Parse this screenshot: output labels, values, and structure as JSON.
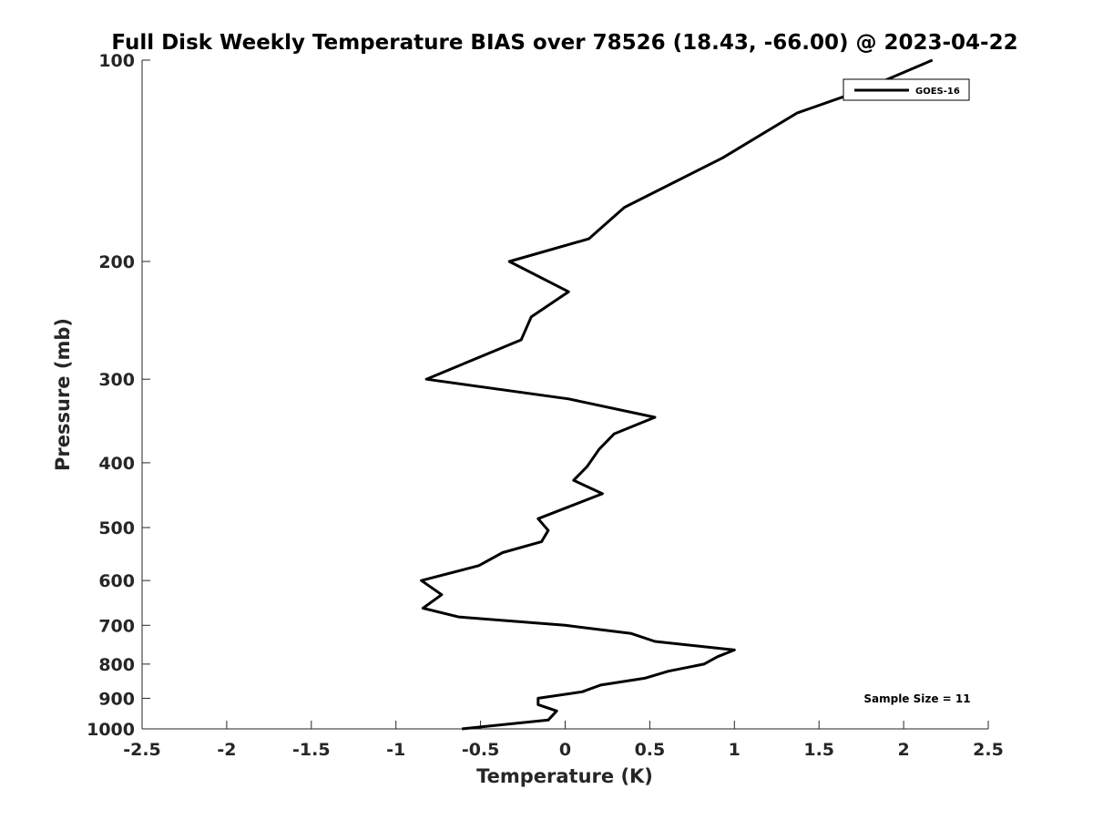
{
  "chart_data": {
    "type": "line",
    "title": "Full Disk Weekly Temperature BIAS over 78526 (18.43, -66.00) @ 2023-04-22",
    "xlabel": "Temperature (K)",
    "ylabel": "Pressure (mb)",
    "xlim": [
      -2.5,
      2.5
    ],
    "ylim": [
      100,
      1000
    ],
    "yscale": "log",
    "y_reversed": true,
    "grid": false,
    "x_ticks": [
      -2.5,
      -2,
      -1.5,
      -1,
      -0.5,
      0,
      0.5,
      1,
      1.5,
      2,
      2.5
    ],
    "x_tick_labels": [
      "-2.5",
      "-2",
      "-1.5",
      "-1",
      "-0.5",
      "0",
      "0.5",
      "1",
      "1.5",
      "2",
      "2.5"
    ],
    "y_ticks": [
      100,
      200,
      300,
      400,
      500,
      600,
      700,
      800,
      900,
      1000
    ],
    "y_tick_labels": [
      "100",
      "200",
      "300",
      "400",
      "500",
      "600",
      "700",
      "800",
      "900",
      "1000"
    ],
    "legend": {
      "entries": [
        "GOES-16"
      ],
      "location": "top-right"
    },
    "annotation": "Sample Size = 11",
    "series": [
      {
        "name": "GOES-16",
        "color": "#000000",
        "points": [
          {
            "x": 2.17,
            "p": 100
          },
          {
            "x": 1.75,
            "p": 111
          },
          {
            "x": 1.37,
            "p": 120
          },
          {
            "x": 0.93,
            "p": 140
          },
          {
            "x": 0.35,
            "p": 166
          },
          {
            "x": 0.14,
            "p": 185
          },
          {
            "x": -0.33,
            "p": 200
          },
          {
            "x": 0.02,
            "p": 222
          },
          {
            "x": -0.2,
            "p": 242
          },
          {
            "x": -0.26,
            "p": 262
          },
          {
            "x": -0.82,
            "p": 300
          },
          {
            "x": 0.02,
            "p": 321
          },
          {
            "x": 0.53,
            "p": 342
          },
          {
            "x": 0.29,
            "p": 362
          },
          {
            "x": 0.2,
            "p": 382
          },
          {
            "x": 0.13,
            "p": 405
          },
          {
            "x": 0.05,
            "p": 425
          },
          {
            "x": 0.22,
            "p": 445
          },
          {
            "x": -0.16,
            "p": 485
          },
          {
            "x": -0.1,
            "p": 505
          },
          {
            "x": -0.14,
            "p": 525
          },
          {
            "x": -0.37,
            "p": 545
          },
          {
            "x": -0.51,
            "p": 570
          },
          {
            "x": -0.85,
            "p": 600
          },
          {
            "x": -0.73,
            "p": 630
          },
          {
            "x": -0.84,
            "p": 660
          },
          {
            "x": -0.63,
            "p": 680
          },
          {
            "x": 0.0,
            "p": 700
          },
          {
            "x": 0.39,
            "p": 720
          },
          {
            "x": 0.53,
            "p": 740
          },
          {
            "x": 1.0,
            "p": 762
          },
          {
            "x": 0.9,
            "p": 780
          },
          {
            "x": 0.82,
            "p": 800
          },
          {
            "x": 0.61,
            "p": 820
          },
          {
            "x": 0.47,
            "p": 840
          },
          {
            "x": 0.21,
            "p": 860
          },
          {
            "x": 0.1,
            "p": 880
          },
          {
            "x": -0.16,
            "p": 900
          },
          {
            "x": -0.16,
            "p": 920
          },
          {
            "x": -0.05,
            "p": 940
          },
          {
            "x": -0.1,
            "p": 970
          },
          {
            "x": -0.61,
            "p": 1000
          }
        ]
      }
    ]
  }
}
